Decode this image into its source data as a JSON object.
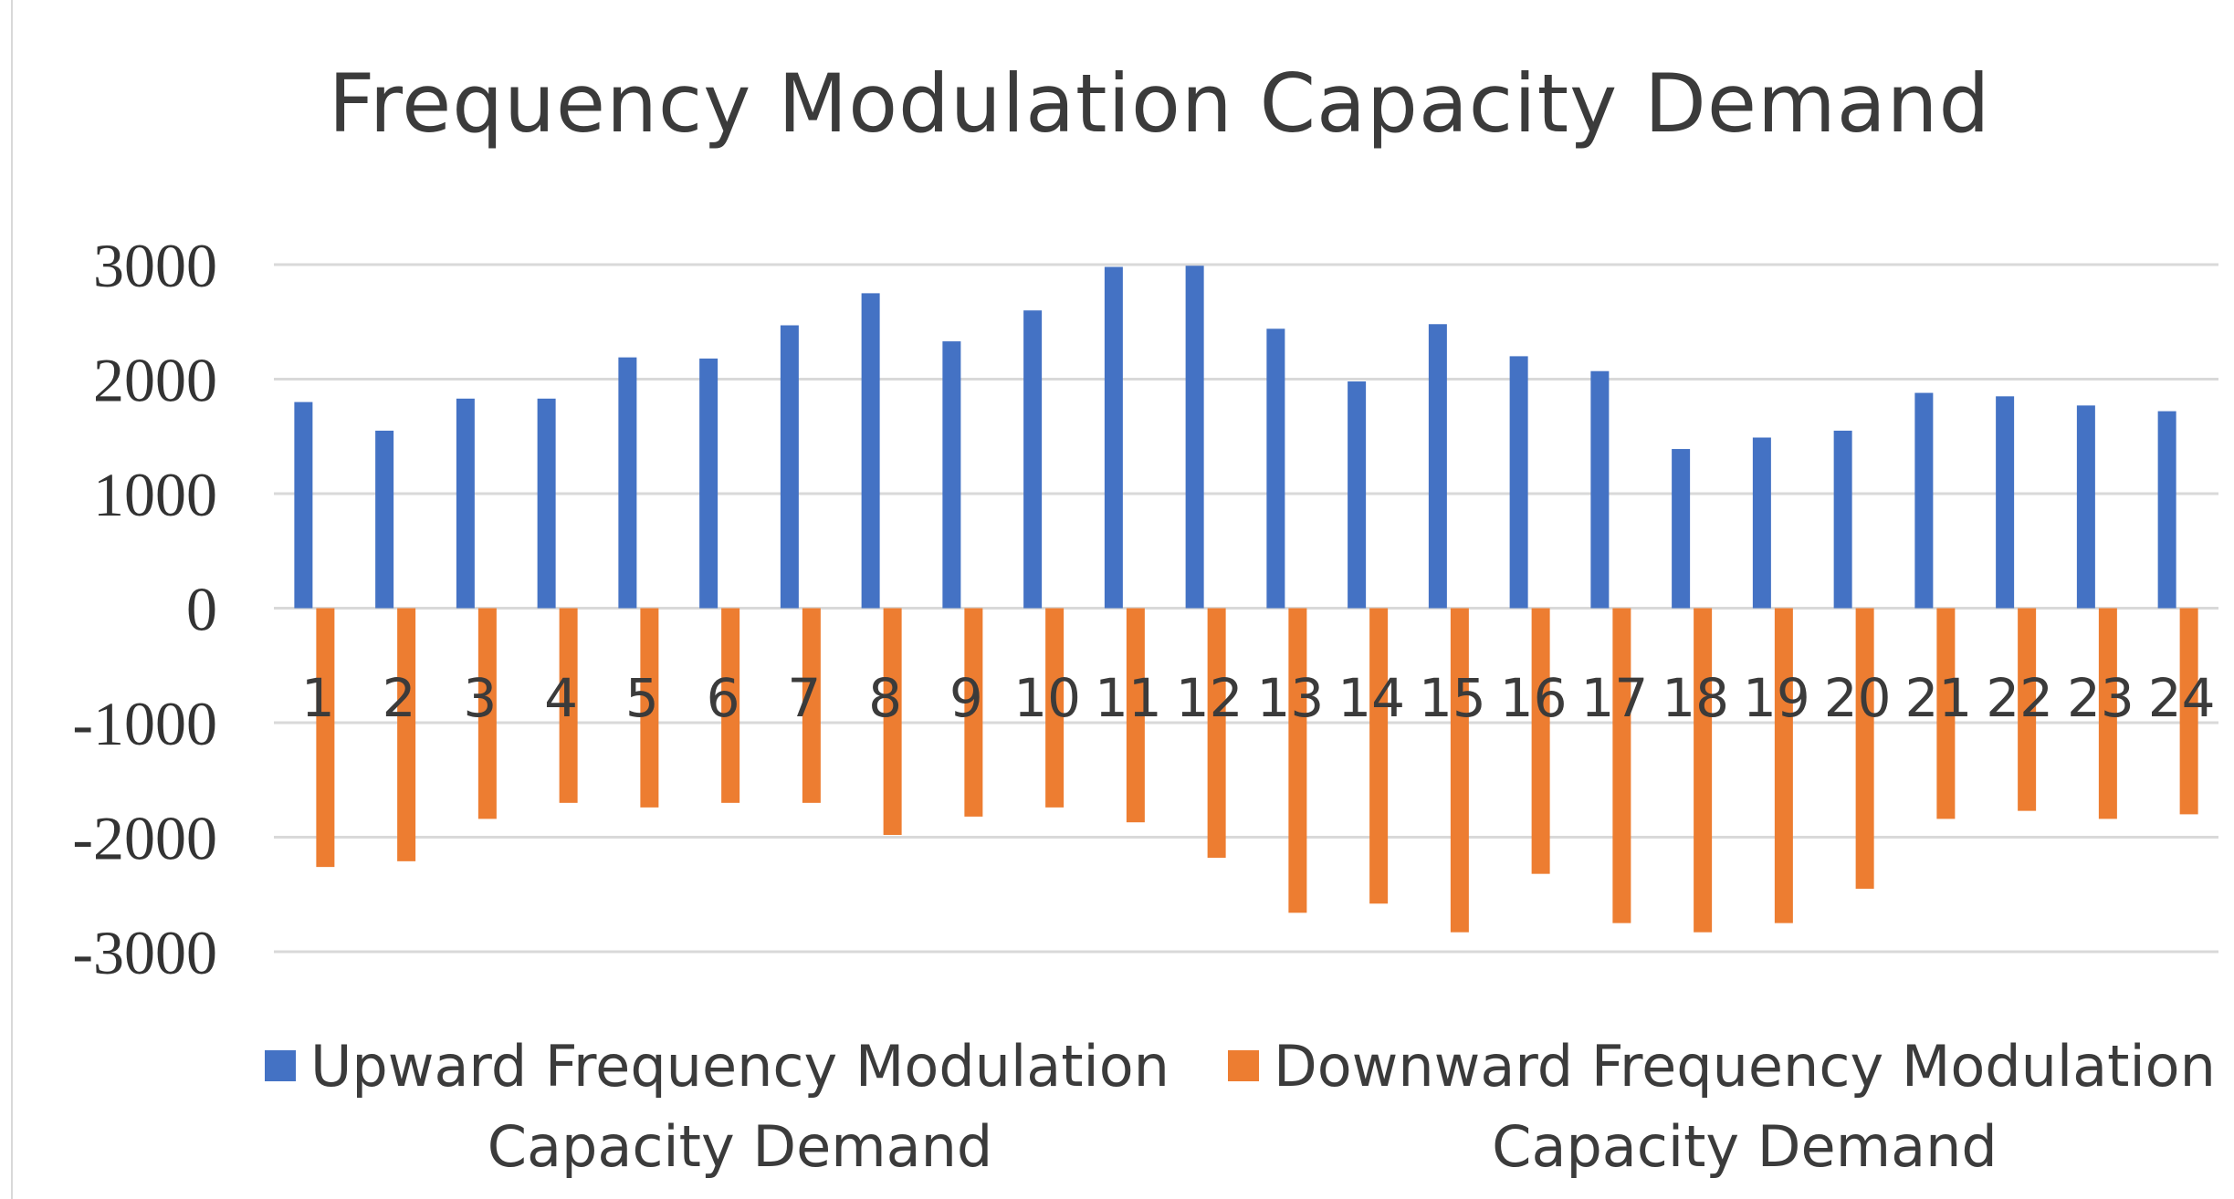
{
  "chart_data": {
    "type": "bar",
    "title": "Frequency Modulation Capacity Demand",
    "xlabel": "",
    "ylabel": "",
    "ylim": [
      -3000,
      3000
    ],
    "yticks": [
      3000,
      2000,
      1000,
      0,
      -1000,
      -2000,
      -3000
    ],
    "ytick_labels": [
      "3000",
      "2000",
      "1000",
      "0",
      "-1000",
      "-2000",
      "-3000"
    ],
    "grid": true,
    "legend_position": "bottom",
    "categories": [
      "1",
      "2",
      "3",
      "4",
      "5",
      "6",
      "7",
      "8",
      "9",
      "10",
      "11",
      "12",
      "13",
      "14",
      "15",
      "16",
      "17",
      "18",
      "19",
      "20",
      "21",
      "22",
      "23",
      "24"
    ],
    "series": [
      {
        "name": "Upward Frequency Modulation Capacity Demand",
        "legend_line1": "Upward Frequency Modulation",
        "legend_line2": "Capacity Demand",
        "color": "#4472c4",
        "values": [
          1800,
          1550,
          1830,
          1830,
          2190,
          2180,
          2470,
          2750,
          2330,
          2600,
          2980,
          2990,
          2440,
          1980,
          2480,
          2200,
          2070,
          1390,
          1490,
          1550,
          1880,
          1850,
          1770,
          1720
        ]
      },
      {
        "name": "Downward Frequency Modulation Capacity Demand",
        "legend_line1": "Downward Frequency Modulation",
        "legend_line2": "Capacity Demand",
        "color": "#ed7d31",
        "values": [
          -2260,
          -2210,
          -1840,
          -1700,
          -1740,
          -1700,
          -1700,
          -1980,
          -1820,
          -1740,
          -1870,
          -2180,
          -2660,
          -2580,
          -2830,
          -2320,
          -2750,
          -2830,
          -2750,
          -2450,
          -1840,
          -1770,
          -1840,
          -1800
        ]
      }
    ]
  }
}
